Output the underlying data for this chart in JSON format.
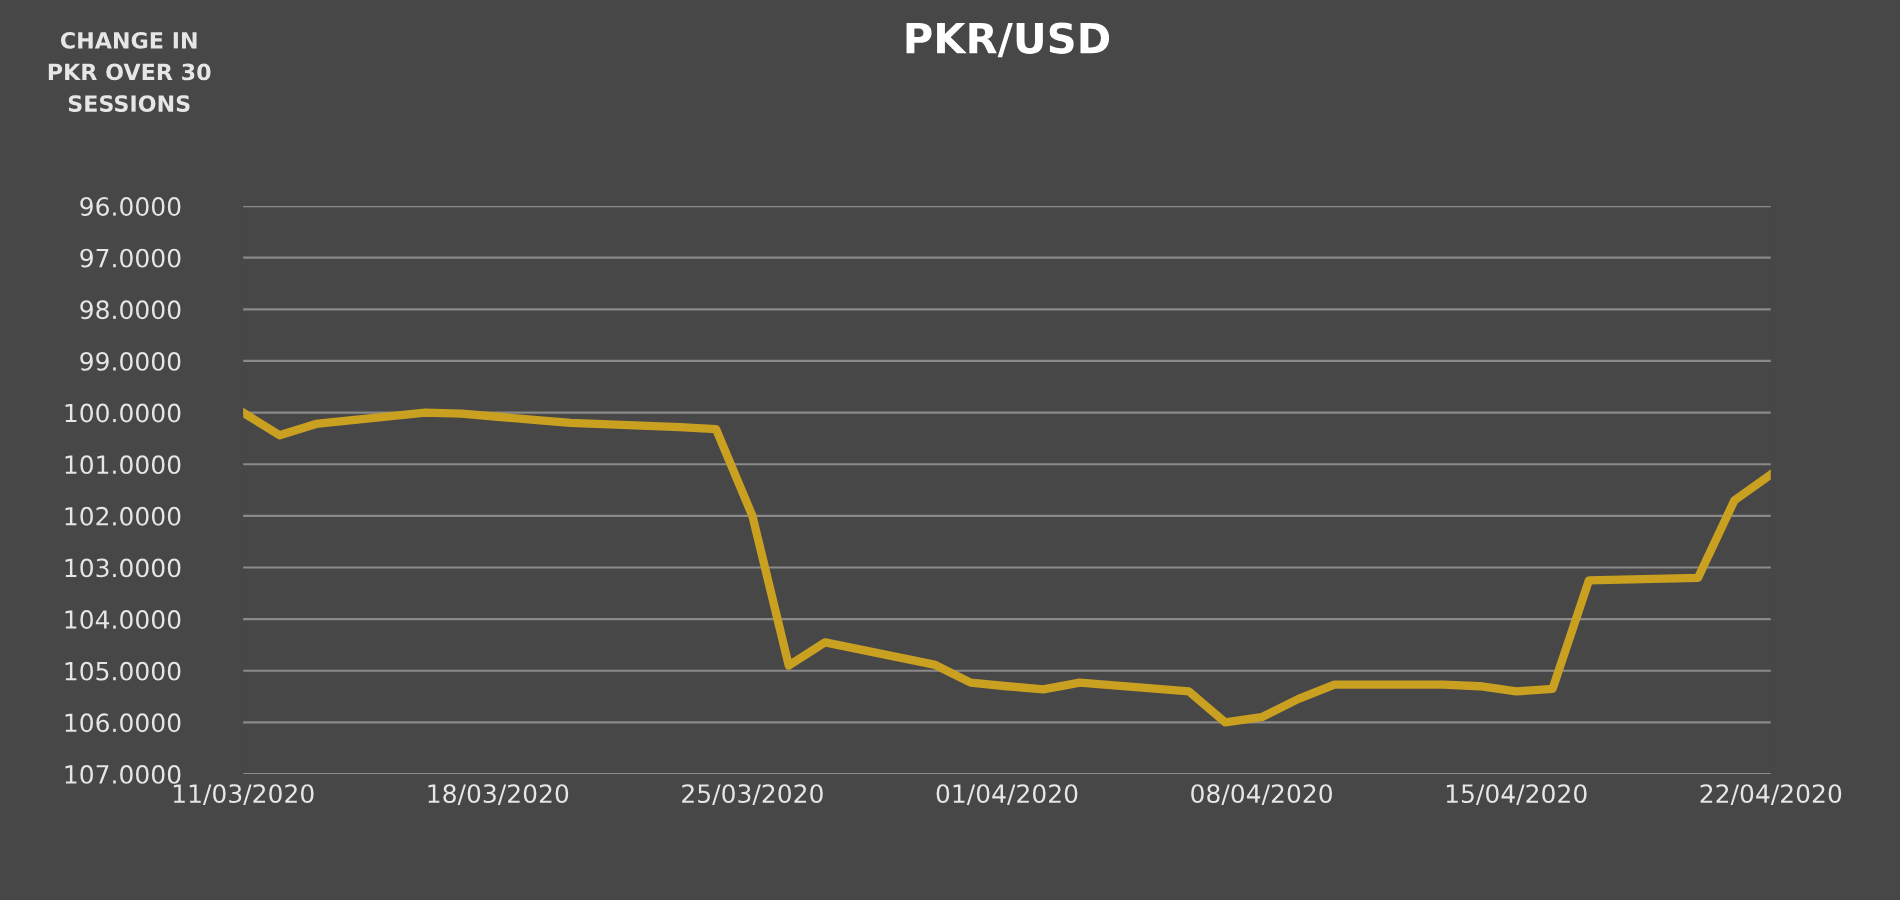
{
  "chart_data": {
    "type": "line",
    "title": "PKR/USD",
    "annotations": [
      "CHANGE IN\nPKR OVER 30\nSESSIONS"
    ],
    "x": [
      "2020-03-11",
      "2020-03-12",
      "2020-03-13",
      "2020-03-16",
      "2020-03-17",
      "2020-03-18",
      "2020-03-19",
      "2020-03-20",
      "2020-03-23",
      "2020-03-24",
      "2020-03-25",
      "2020-03-26",
      "2020-03-27",
      "2020-03-30",
      "2020-03-31",
      "2020-04-01",
      "2020-04-02",
      "2020-04-03",
      "2020-04-06",
      "2020-04-07",
      "2020-04-08",
      "2020-04-09",
      "2020-04-10",
      "2020-04-13",
      "2020-04-14",
      "2020-04-15",
      "2020-04-16",
      "2020-04-17",
      "2020-04-20",
      "2020-04-21",
      "2020-04-22"
    ],
    "series": [
      {
        "color": "#c9a020",
        "values": [
          100.0,
          100.44,
          100.22,
          100.0,
          100.02,
          100.08,
          100.14,
          100.2,
          100.28,
          100.32,
          102.0,
          104.9,
          104.45,
          104.88,
          105.23,
          105.3,
          105.36,
          105.23,
          105.4,
          106.0,
          105.9,
          105.55,
          105.27,
          105.27,
          105.3,
          105.4,
          105.35,
          103.25,
          103.2,
          101.7,
          101.2
        ]
      }
    ],
    "xlim": [
      "2020-03-11",
      "2020-04-22"
    ],
    "xticks": [
      {
        "value": "2020-03-11",
        "label": "11/03/2020"
      },
      {
        "value": "2020-03-18",
        "label": "18/03/2020"
      },
      {
        "value": "2020-03-25",
        "label": "25/03/2020"
      },
      {
        "value": "2020-04-01",
        "label": "01/04/2020"
      },
      {
        "value": "2020-04-08",
        "label": "08/04/2020"
      },
      {
        "value": "2020-04-15",
        "label": "15/04/2020"
      },
      {
        "value": "2020-04-22",
        "label": "22/04/2020"
      }
    ],
    "ylim": [
      107,
      96
    ],
    "yticks": [
      {
        "value": 96,
        "label": "96.0000"
      },
      {
        "value": 97,
        "label": "97.0000"
      },
      {
        "value": 98,
        "label": "98.0000"
      },
      {
        "value": 99,
        "label": "99.0000"
      },
      {
        "value": 100,
        "label": "100.0000"
      },
      {
        "value": 101,
        "label": "101.0000"
      },
      {
        "value": 102,
        "label": "102.0000"
      },
      {
        "value": 103,
        "label": "103.0000"
      },
      {
        "value": 104,
        "label": "104.0000"
      },
      {
        "value": 105,
        "label": "105.0000"
      },
      {
        "value": 106,
        "label": "106.0000"
      },
      {
        "value": 107,
        "label": "107.0000"
      }
    ],
    "grid": "y",
    "marker": "none",
    "line_style": "solid",
    "legend": false
  }
}
